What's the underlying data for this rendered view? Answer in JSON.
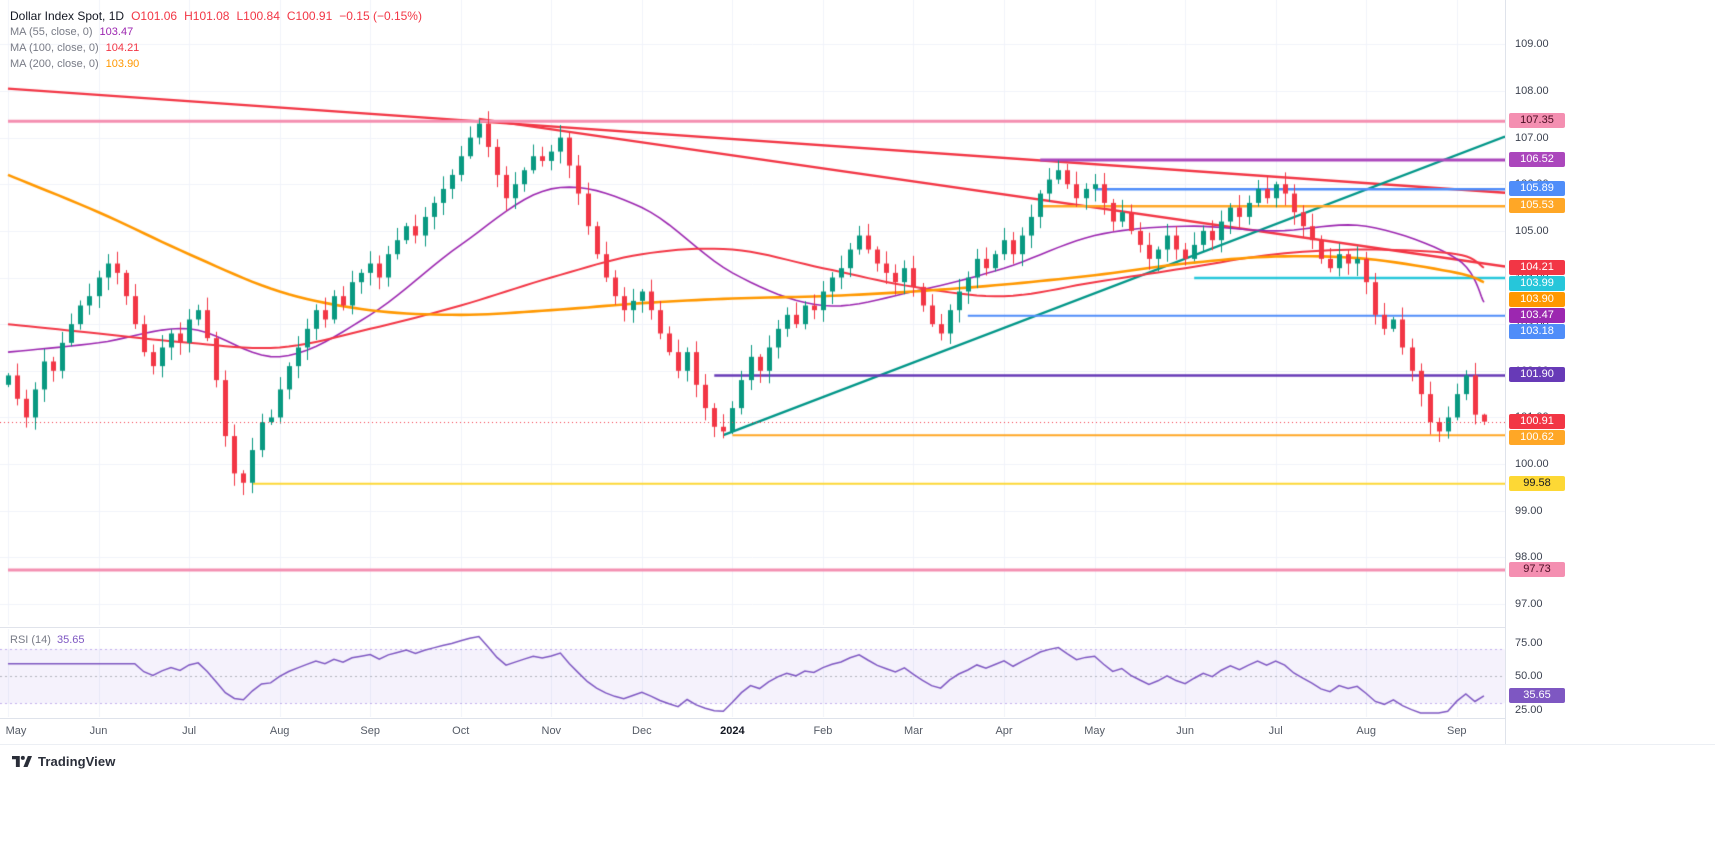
{
  "legend": {
    "title": "Dollar Index Spot, 1D",
    "ohlc": {
      "open": "O101.06",
      "high": "H101.08",
      "low": "L100.84",
      "close": "C100.91",
      "change": "−0.15 (−0.15%)",
      "color": "#f23645"
    },
    "ma_rows": [
      {
        "label": "MA (55, close, 0)",
        "value": "103.47",
        "color": "#9c27b0"
      },
      {
        "label": "MA (100, close, 0)",
        "value": "104.21",
        "color": "#f23645"
      },
      {
        "label": "MA (200, close, 0)",
        "value": "103.90",
        "color": "#ff9800"
      }
    ]
  },
  "rsi_legend": {
    "label": "RSI (14)",
    "value": "35.65",
    "color": "#7e57c2"
  },
  "footer": {
    "brand": "TradingView"
  },
  "chart_data": {
    "type": "candlestick",
    "title": "Dollar Index Spot, 1D",
    "x_labels": [
      "May",
      "Jun",
      "Jul",
      "Aug",
      "Sep",
      "Oct",
      "Nov",
      "Dec",
      "2024",
      "Feb",
      "Mar",
      "Apr",
      "May",
      "Jun",
      "Jul",
      "Aug",
      "Sep"
    ],
    "label_every": 10,
    "y_ticks": [
      109,
      108,
      107,
      106,
      105,
      104,
      103,
      102,
      101,
      100,
      99,
      98,
      97
    ],
    "y_range": [
      96.55,
      109.95
    ],
    "up_color": "#089981",
    "down_color": "#f23645",
    "first_open": 101.7,
    "closes": [
      101.9,
      101.4,
      101.0,
      101.6,
      102.2,
      102.0,
      102.6,
      103.0,
      103.4,
      103.6,
      104.0,
      104.3,
      104.1,
      103.6,
      103.0,
      102.4,
      102.1,
      102.5,
      102.8,
      102.6,
      103.1,
      103.3,
      102.7,
      101.8,
      100.6,
      99.8,
      99.6,
      100.3,
      100.9,
      101.0,
      101.6,
      102.1,
      102.5,
      102.9,
      103.3,
      103.1,
      103.6,
      103.4,
      103.9,
      104.1,
      104.3,
      104.0,
      104.5,
      104.8,
      105.1,
      104.9,
      105.3,
      105.6,
      105.9,
      106.2,
      106.6,
      107.0,
      107.3,
      106.8,
      106.2,
      105.7,
      106.0,
      106.3,
      106.6,
      106.5,
      106.7,
      107.0,
      106.4,
      105.8,
      105.1,
      104.5,
      104.0,
      103.6,
      103.3,
      103.5,
      103.7,
      103.3,
      102.8,
      102.4,
      102.0,
      102.4,
      101.7,
      101.2,
      100.8,
      100.7,
      101.2,
      101.8,
      102.3,
      102.0,
      102.5,
      102.9,
      103.2,
      103.0,
      103.4,
      103.3,
      103.7,
      104.0,
      104.2,
      104.6,
      104.9,
      104.6,
      104.3,
      104.1,
      103.9,
      104.2,
      103.8,
      103.4,
      103.0,
      102.8,
      103.3,
      103.7,
      104.0,
      104.4,
      104.2,
      104.5,
      104.8,
      104.5,
      104.9,
      105.3,
      105.8,
      106.1,
      106.3,
      106.0,
      105.7,
      105.9,
      106.0,
      105.6,
      105.2,
      105.4,
      105.0,
      104.7,
      104.4,
      104.6,
      104.9,
      104.6,
      104.4,
      104.7,
      105.0,
      104.8,
      105.2,
      105.5,
      105.3,
      105.6,
      105.9,
      105.7,
      106.0,
      105.8,
      105.4,
      105.1,
      104.8,
      104.4,
      104.2,
      104.5,
      104.3,
      104.4,
      103.9,
      103.2,
      102.9,
      103.1,
      102.5,
      102.0,
      101.5,
      100.9,
      100.7,
      101.0,
      101.5,
      101.9,
      101.06,
      100.91
    ],
    "last_candle": {
      "o": 101.06,
      "h": 101.08,
      "l": 100.84,
      "c": 100.91
    },
    "current_price": {
      "price": 100.91,
      "label": "100.91",
      "color": "#f23645"
    },
    "anchor_indices": [
      0,
      10,
      20,
      30,
      40,
      50,
      60,
      70,
      80,
      90,
      100,
      110,
      120,
      130,
      140,
      150,
      160,
      163
    ],
    "moving_averages": [
      {
        "name": "MA 55",
        "color": "#9c27b0",
        "width": 1.6,
        "last_label": "103.47",
        "anchors": [
          102.4,
          102.6,
          102.9,
          102.3,
          103.2,
          104.7,
          105.9,
          105.5,
          104.1,
          103.4,
          103.7,
          104.2,
          104.9,
          105.1,
          105.0,
          105.1,
          104.4,
          103.47
        ]
      },
      {
        "name": "MA 100",
        "color": "#f23645",
        "width": 2.0,
        "last_label": "104.21",
        "anchors": [
          103.0,
          102.8,
          102.6,
          102.5,
          102.9,
          103.4,
          104.0,
          104.5,
          104.6,
          104.2,
          103.8,
          103.6,
          103.9,
          104.2,
          104.5,
          104.6,
          104.5,
          104.21
        ]
      },
      {
        "name": "MA 200",
        "color": "#ff9800",
        "width": 2.6,
        "last_label": "103.90",
        "anchors": [
          106.2,
          105.4,
          104.5,
          103.7,
          103.3,
          103.2,
          103.3,
          103.45,
          103.55,
          103.6,
          103.7,
          103.85,
          104.05,
          104.3,
          104.45,
          104.4,
          104.1,
          103.9
        ]
      }
    ],
    "levels": [
      {
        "price": 107.35,
        "label": "107.35",
        "color": "#f48fb1",
        "text": "#4a0d22",
        "from": 0,
        "width": 3
      },
      {
        "price": 106.52,
        "label": "106.52",
        "color": "#ab47bc",
        "text": "#ffffff",
        "from": 114,
        "width": 3
      },
      {
        "price": 105.89,
        "label": "105.89",
        "color": "#4f8df9",
        "text": "#ffffff",
        "from": 120,
        "width": 2.5
      },
      {
        "price": 105.53,
        "label": "105.53",
        "color": "#ffa726",
        "text": "#ffffff",
        "from": 114,
        "width": 2.5
      },
      {
        "price": 103.99,
        "label": "103.99",
        "color": "#26c6da",
        "text": "#ffffff",
        "from": 131,
        "width": 2.5
      },
      {
        "price": 103.18,
        "label": "103.18",
        "color": "#4f8df9",
        "text": "#ffffff",
        "from": 106,
        "width": 2
      },
      {
        "price": 101.9,
        "label": "101.90",
        "color": "#673ab7",
        "text": "#ffffff",
        "from": 78,
        "width": 2.5
      },
      {
        "price": 100.62,
        "label": "100.62",
        "color": "#ffa726",
        "text": "#ffffff",
        "from": 80,
        "width": 2
      },
      {
        "price": 99.58,
        "label": "99.58",
        "color": "#fdd835",
        "text": "#131722",
        "from": 27,
        "width": 2
      },
      {
        "price": 97.73,
        "label": "97.73",
        "color": "#f48fb1",
        "text": "#4a0d22",
        "from": 0,
        "width": 3
      }
    ],
    "trendlines": [
      {
        "from_index": 0,
        "from_price": 108.05,
        "to_index": 163,
        "to_price": 105.85,
        "color": "#f23645",
        "width": 2.4
      },
      {
        "from_index": 52,
        "from_price": 107.4,
        "to_index": 163,
        "to_price": 104.3,
        "color": "#f23645",
        "width": 2.4
      },
      {
        "from_index": 79,
        "from_price": 100.62,
        "to_index": 163,
        "to_price": 106.85,
        "color": "#009688",
        "width": 2.4
      }
    ],
    "rsi": {
      "period": 14,
      "ticks": [
        75,
        50,
        25
      ],
      "band": [
        30,
        70
      ],
      "value_range": [
        20,
        85
      ],
      "color": "#7e57c2",
      "band_fill": "rgba(126,87,217,0.08)",
      "last_label": "35.65",
      "last_value": 35.65
    }
  }
}
